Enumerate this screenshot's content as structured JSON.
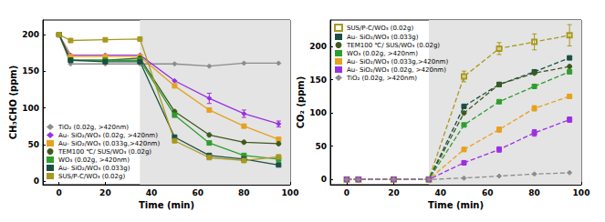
{
  "chart_data": [
    {
      "type": "line",
      "x_label": "Time (min)",
      "y_label": "CH₃CHO (ppm)",
      "xlim": [
        -7,
        100
      ],
      "xticks": [
        0,
        20,
        40,
        60,
        80,
        100
      ],
      "ylim": [
        -5,
        220
      ],
      "yticks": [
        0,
        50,
        100,
        150,
        200
      ],
      "shaded_x": [
        35,
        100
      ],
      "legend": "lower left",
      "line_style": "solid",
      "x": [
        0,
        5,
        20,
        35,
        50,
        65,
        80,
        95
      ],
      "series": [
        {
          "name": "TiO₂ (0.02g, >420nm)",
          "color": "#8c8c8c",
          "marker": "diamond",
          "values": [
            200,
            160,
            160,
            160,
            160,
            157,
            161,
            161
          ]
        },
        {
          "name": "Au- SiO₂/WO₃ (0.02g, >420nm)",
          "color": "#9b30e0",
          "marker": "diamond",
          "values": [
            200,
            172,
            172,
            172,
            137,
            113,
            92,
            78
          ],
          "errors": [
            null,
            null,
            null,
            null,
            null,
            7,
            5,
            4
          ]
        },
        {
          "name": "Au- SiO₂/WO₃ (0.033g,>420nm)",
          "color": "#e6a11e",
          "marker": "square",
          "values": [
            200,
            170,
            170,
            170,
            130,
            97,
            75,
            57
          ]
        },
        {
          "name": "TEM100 ℃/ SUS/WO₃ (0.02g)",
          "color": "#3d5a1e",
          "marker": "circle",
          "values": [
            200,
            165,
            165,
            168,
            95,
            63,
            53,
            51
          ]
        },
        {
          "name": "WO₃ (0.02g, >420nm)",
          "color": "#2e9e2e",
          "marker": "square",
          "values": [
            200,
            165,
            165,
            165,
            90,
            52,
            35,
            30
          ]
        },
        {
          "name": "Au- SiO₂/WO₃ (0.033g)",
          "color": "#1b4f45",
          "marker": "square",
          "values": [
            200,
            165,
            163,
            163,
            60,
            35,
            30,
            22
          ]
        },
        {
          "name": "SUS/P-C/WO₃ (0.02g)",
          "color": "#a8981e",
          "marker": "square",
          "values": [
            200,
            192,
            193,
            194,
            55,
            32,
            28,
            33
          ]
        }
      ]
    },
    {
      "type": "line",
      "x_label": "Time (min)",
      "y_label": "CO₂ (ppm)",
      "xlim": [
        -7,
        100
      ],
      "xticks": [
        0,
        20,
        40,
        60,
        80,
        100
      ],
      "ylim": [
        -8,
        240
      ],
      "yticks": [
        0,
        50,
        100,
        150,
        200
      ],
      "shaded_x": [
        35,
        100
      ],
      "legend": "upper left",
      "line_style": "dashed",
      "x": [
        0,
        5,
        20,
        35,
        50,
        65,
        80,
        95
      ],
      "series": [
        {
          "name": "SUS/P-C/WO₃ (0.02g)",
          "color": "#a8981e",
          "marker": "open_square",
          "values": [
            0,
            0,
            0,
            0,
            155,
            197,
            207,
            217
          ],
          "errors": [
            null,
            null,
            null,
            null,
            8,
            9,
            12,
            16
          ]
        },
        {
          "name": "Au- SiO₂/WO₃ (0.033g)",
          "color": "#1b4f45",
          "marker": "square",
          "values": [
            0,
            0,
            0,
            0,
            110,
            143,
            162,
            183
          ]
        },
        {
          "name": "TEM100 ℃/ SUS/WO₃ (0.02g)",
          "color": "#3d5a1e",
          "marker": "circle",
          "values": [
            0,
            0,
            0,
            0,
            100,
            143,
            160,
            170
          ]
        },
        {
          "name": "WO₃ (0.02g, >420nm)",
          "color": "#2e9e2e",
          "marker": "square",
          "values": [
            0,
            0,
            0,
            0,
            82,
            117,
            140,
            162
          ]
        },
        {
          "name": "Au- SiO₂/WO₃ (0.033g,>420nm)",
          "color": "#e6a11e",
          "marker": "square",
          "values": [
            0,
            0,
            0,
            0,
            45,
            75,
            107,
            125
          ],
          "errors": [
            null,
            null,
            null,
            null,
            3,
            4,
            4,
            3
          ]
        },
        {
          "name": "Au- SiO₂/WO₃ (0.02g, >420nm)",
          "color": "#9b30e0",
          "marker": "square",
          "values": [
            0,
            0,
            0,
            0,
            25,
            45,
            70,
            90
          ],
          "errors": [
            null,
            null,
            null,
            null,
            3,
            4,
            5,
            4
          ]
        },
        {
          "name": "TiO₂ (0.02g, >420nm)",
          "color": "#8c8c8c",
          "marker": "diamond",
          "values": [
            0,
            0,
            0,
            0,
            2,
            5,
            8,
            10
          ]
        }
      ]
    }
  ]
}
